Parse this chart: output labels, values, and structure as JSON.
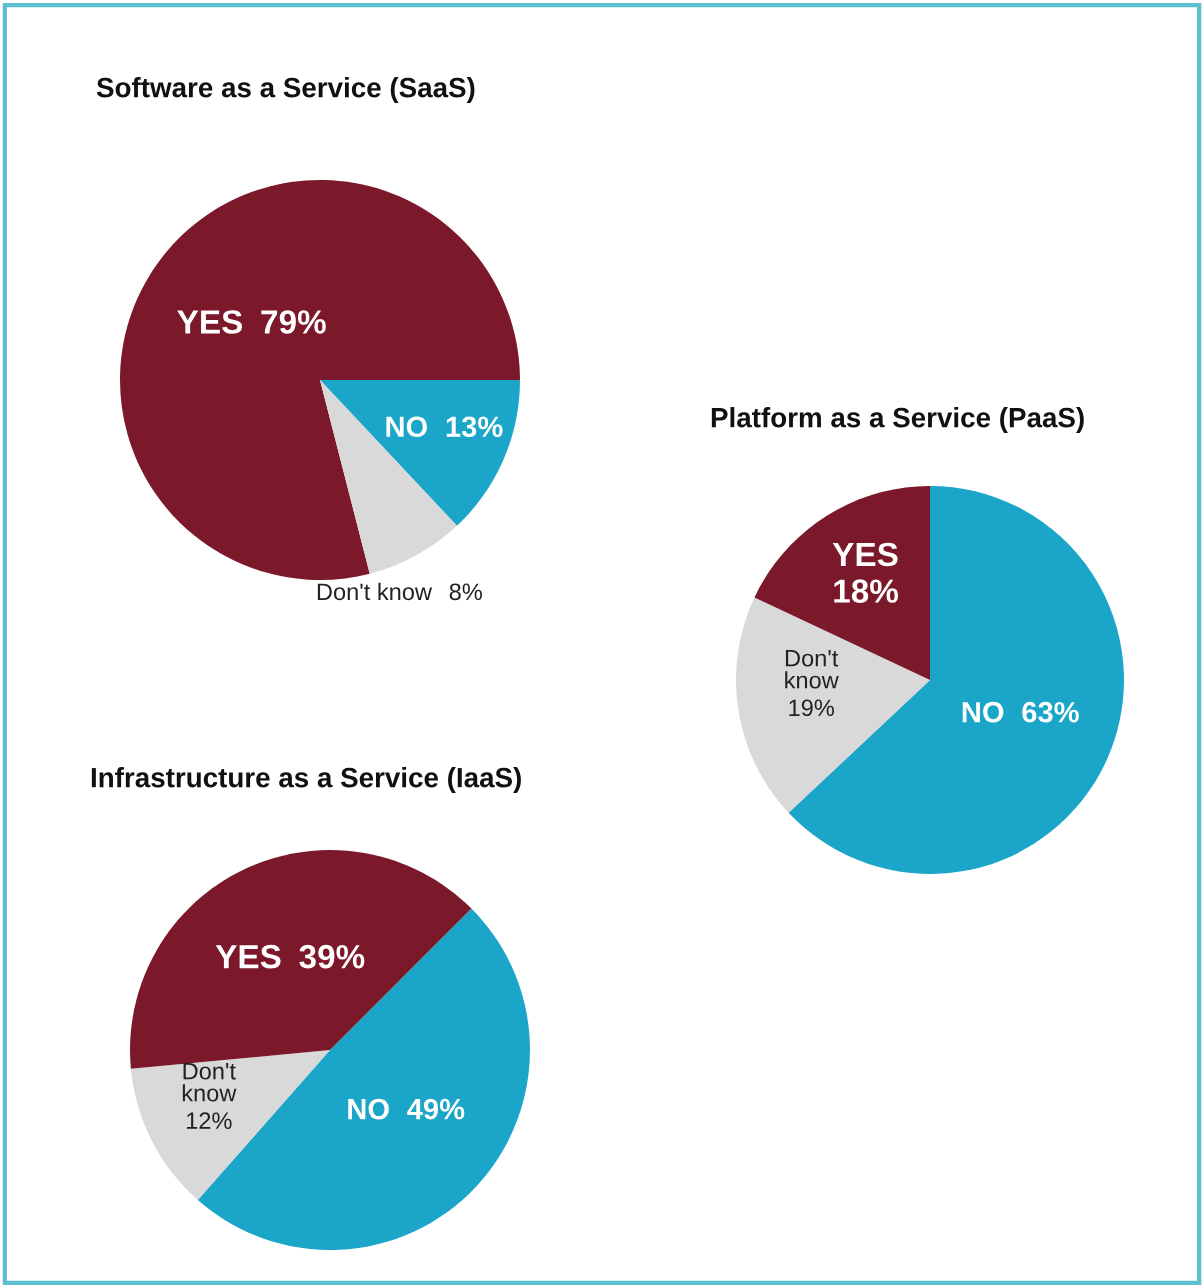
{
  "chart_data": [
    {
      "type": "pie",
      "title": "Software as a Service (SaaS)",
      "categories": [
        "YES",
        "NO",
        "Don't know"
      ],
      "values": [
        79,
        13,
        8
      ],
      "value_labels": [
        "79%",
        "13%",
        "8%"
      ],
      "colors": [
        "#7b1829",
        "#1ba6c9",
        "#d9d9d9"
      ]
    },
    {
      "type": "pie",
      "title": "Platform as a Service (PaaS)",
      "categories": [
        "NO",
        "Don't know",
        "YES"
      ],
      "values": [
        63,
        19,
        18
      ],
      "value_labels": [
        "63%",
        "19%",
        "18%"
      ],
      "colors": [
        "#1ba6c9",
        "#d9d9d9",
        "#7b1829"
      ]
    },
    {
      "type": "pie",
      "title": "Infrastructure as a Service (IaaS)",
      "categories": [
        "NO",
        "Don't know",
        "YES"
      ],
      "values": [
        49,
        12,
        39
      ],
      "value_labels": [
        "49%",
        "12%",
        "39%"
      ],
      "colors": [
        "#1ba6c9",
        "#d9d9d9",
        "#7b1829"
      ]
    }
  ]
}
